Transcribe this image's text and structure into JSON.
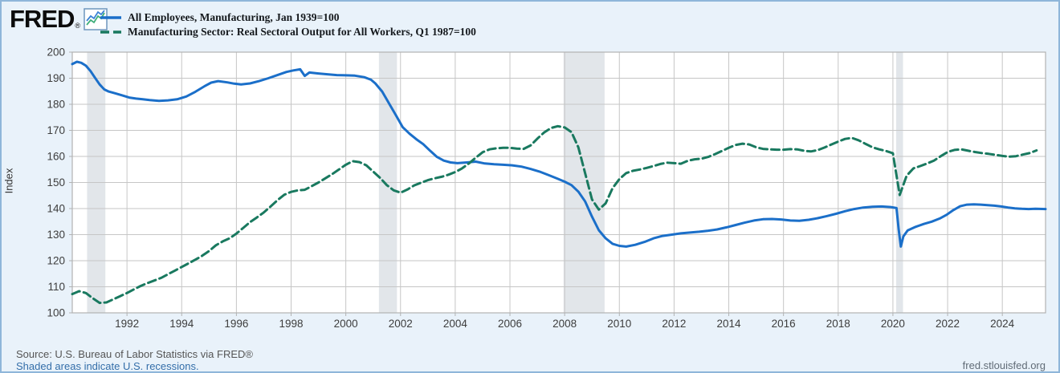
{
  "header": {
    "logo_text": "FRED",
    "logo_registered": "®"
  },
  "footer": {
    "source_text": "Source: U.S. Bureau of Labor Statistics via FRED®",
    "shaded_note": "Shaded areas indicate U.S. recessions.",
    "site_url": "fred.stlouisfed.org"
  },
  "colors": {
    "background": "#e9f2fa",
    "plot_background": "#ffffff",
    "grid": "#c6c6c6",
    "plot_border": "#b2b2b2",
    "recession_shading": "#e2e6ea",
    "axis_text": "#3d3d3d",
    "blue_series": "#1b6fc9",
    "green_series": "#19795f",
    "link_text": "#336ea9"
  },
  "chart_data": {
    "type": "line",
    "ylabel": "Index",
    "xlabel": "",
    "ylim": [
      100,
      200
    ],
    "xlim": [
      1990,
      2025.58
    ],
    "yticks": [
      100,
      110,
      120,
      130,
      140,
      150,
      160,
      170,
      180,
      190,
      200
    ],
    "xticks": [
      1992,
      1994,
      1996,
      1998,
      2000,
      2002,
      2004,
      2006,
      2008,
      2010,
      2012,
      2014,
      2016,
      2018,
      2020,
      2022,
      2024
    ],
    "grid": true,
    "legend_position": "top-left",
    "recessions_note": "shaded vertical bands, U.S. recessions",
    "recessions": [
      [
        1990.54,
        1991.21
      ],
      [
        2001.21,
        2001.87
      ],
      [
        2007.96,
        2009.46
      ],
      [
        2020.12,
        2020.37
      ]
    ],
    "series": [
      {
        "name": "All Employees, Manufacturing, Jan 1939=100",
        "color": "#1b6fc9",
        "style": "solid",
        "points": [
          [
            1990.0,
            195.4
          ],
          [
            1990.17,
            196.3
          ],
          [
            1990.33,
            195.9
          ],
          [
            1990.5,
            194.8
          ],
          [
            1990.67,
            192.7
          ],
          [
            1990.83,
            190.2
          ],
          [
            1991.0,
            187.6
          ],
          [
            1991.17,
            185.7
          ],
          [
            1991.33,
            184.9
          ],
          [
            1991.58,
            184.2
          ],
          [
            1991.83,
            183.4
          ],
          [
            1992.08,
            182.6
          ],
          [
            1992.33,
            182.2
          ],
          [
            1992.58,
            181.9
          ],
          [
            1992.83,
            181.6
          ],
          [
            1993.17,
            181.3
          ],
          [
            1993.5,
            181.5
          ],
          [
            1993.83,
            181.9
          ],
          [
            1994.17,
            183.0
          ],
          [
            1994.5,
            184.8
          ],
          [
            1994.83,
            186.9
          ],
          [
            1995.08,
            188.3
          ],
          [
            1995.33,
            188.9
          ],
          [
            1995.67,
            188.4
          ],
          [
            1995.92,
            187.9
          ],
          [
            1996.17,
            187.6
          ],
          [
            1996.5,
            188.0
          ],
          [
            1996.83,
            188.9
          ],
          [
            1997.17,
            190.0
          ],
          [
            1997.5,
            191.2
          ],
          [
            1997.83,
            192.4
          ],
          [
            1998.08,
            193.0
          ],
          [
            1998.33,
            193.4
          ],
          [
            1998.5,
            190.9
          ],
          [
            1998.67,
            192.2
          ],
          [
            1999.0,
            191.8
          ],
          [
            1999.33,
            191.5
          ],
          [
            1999.67,
            191.2
          ],
          [
            2000.0,
            191.1
          ],
          [
            2000.33,
            191.0
          ],
          [
            2000.67,
            190.4
          ],
          [
            2000.92,
            189.4
          ],
          [
            2001.08,
            188.0
          ],
          [
            2001.33,
            184.9
          ],
          [
            2001.58,
            180.3
          ],
          [
            2001.83,
            175.8
          ],
          [
            2002.08,
            171.2
          ],
          [
            2002.33,
            168.7
          ],
          [
            2002.58,
            166.6
          ],
          [
            2002.83,
            164.7
          ],
          [
            2003.08,
            162.2
          ],
          [
            2003.33,
            159.8
          ],
          [
            2003.58,
            158.4
          ],
          [
            2003.83,
            157.7
          ],
          [
            2004.08,
            157.4
          ],
          [
            2004.42,
            157.7
          ],
          [
            2004.75,
            158.0
          ],
          [
            2005.08,
            157.3
          ],
          [
            2005.42,
            157.0
          ],
          [
            2005.75,
            156.8
          ],
          [
            2006.08,
            156.6
          ],
          [
            2006.42,
            156.1
          ],
          [
            2006.75,
            155.2
          ],
          [
            2007.08,
            154.2
          ],
          [
            2007.42,
            152.8
          ],
          [
            2007.75,
            151.4
          ],
          [
            2008.0,
            150.3
          ],
          [
            2008.25,
            149.0
          ],
          [
            2008.5,
            146.5
          ],
          [
            2008.75,
            142.7
          ],
          [
            2009.0,
            136.9
          ],
          [
            2009.25,
            131.7
          ],
          [
            2009.5,
            128.6
          ],
          [
            2009.75,
            126.5
          ],
          [
            2010.0,
            125.7
          ],
          [
            2010.25,
            125.4
          ],
          [
            2010.58,
            126.1
          ],
          [
            2010.92,
            127.2
          ],
          [
            2011.25,
            128.6
          ],
          [
            2011.58,
            129.5
          ],
          [
            2011.92,
            130.0
          ],
          [
            2012.25,
            130.5
          ],
          [
            2012.58,
            130.8
          ],
          [
            2012.92,
            131.1
          ],
          [
            2013.25,
            131.5
          ],
          [
            2013.58,
            132.0
          ],
          [
            2013.92,
            132.8
          ],
          [
            2014.25,
            133.7
          ],
          [
            2014.58,
            134.6
          ],
          [
            2014.92,
            135.4
          ],
          [
            2015.25,
            135.9
          ],
          [
            2015.58,
            136.0
          ],
          [
            2015.92,
            135.8
          ],
          [
            2016.25,
            135.4
          ],
          [
            2016.58,
            135.3
          ],
          [
            2016.92,
            135.7
          ],
          [
            2017.25,
            136.3
          ],
          [
            2017.58,
            137.1
          ],
          [
            2017.92,
            138.0
          ],
          [
            2018.25,
            139.0
          ],
          [
            2018.58,
            139.8
          ],
          [
            2018.92,
            140.4
          ],
          [
            2019.25,
            140.7
          ],
          [
            2019.58,
            140.8
          ],
          [
            2019.92,
            140.6
          ],
          [
            2020.13,
            140.2
          ],
          [
            2020.21,
            132.0
          ],
          [
            2020.29,
            125.4
          ],
          [
            2020.38,
            129.3
          ],
          [
            2020.54,
            131.6
          ],
          [
            2020.83,
            133.0
          ],
          [
            2021.13,
            134.1
          ],
          [
            2021.42,
            135.0
          ],
          [
            2021.71,
            136.2
          ],
          [
            2021.96,
            137.6
          ],
          [
            2022.21,
            139.4
          ],
          [
            2022.46,
            140.9
          ],
          [
            2022.71,
            141.5
          ],
          [
            2022.96,
            141.6
          ],
          [
            2023.21,
            141.5
          ],
          [
            2023.46,
            141.3
          ],
          [
            2023.71,
            141.1
          ],
          [
            2023.96,
            140.8
          ],
          [
            2024.21,
            140.4
          ],
          [
            2024.46,
            140.1
          ],
          [
            2024.71,
            139.9
          ],
          [
            2024.96,
            139.8
          ],
          [
            2025.21,
            139.9
          ],
          [
            2025.58,
            139.8
          ]
        ]
      },
      {
        "name": "Manufacturing Sector: Real Sectoral Output for All Workers, Q1 1987=100",
        "color": "#19795f",
        "style": "dashed",
        "points": [
          [
            1990.0,
            107.2
          ],
          [
            1990.25,
            108.3
          ],
          [
            1990.5,
            107.6
          ],
          [
            1990.75,
            105.6
          ],
          [
            1991.0,
            103.8
          ],
          [
            1991.25,
            104.0
          ],
          [
            1991.5,
            105.2
          ],
          [
            1991.75,
            106.4
          ],
          [
            1992.0,
            107.6
          ],
          [
            1992.25,
            109.0
          ],
          [
            1992.5,
            110.3
          ],
          [
            1992.75,
            111.4
          ],
          [
            1993.0,
            112.4
          ],
          [
            1993.25,
            113.4
          ],
          [
            1993.5,
            114.8
          ],
          [
            1993.75,
            116.2
          ],
          [
            1994.0,
            117.6
          ],
          [
            1994.25,
            119.0
          ],
          [
            1994.5,
            120.4
          ],
          [
            1994.75,
            121.9
          ],
          [
            1995.0,
            123.7
          ],
          [
            1995.25,
            125.9
          ],
          [
            1995.5,
            127.4
          ],
          [
            1995.75,
            128.6
          ],
          [
            1996.0,
            130.4
          ],
          [
            1996.25,
            132.6
          ],
          [
            1996.5,
            134.8
          ],
          [
            1996.75,
            136.6
          ],
          [
            1997.0,
            138.5
          ],
          [
            1997.25,
            140.8
          ],
          [
            1997.5,
            143.2
          ],
          [
            1997.75,
            145.3
          ],
          [
            1998.0,
            146.4
          ],
          [
            1998.25,
            147.0
          ],
          [
            1998.5,
            147.2
          ],
          [
            1998.75,
            148.6
          ],
          [
            1999.0,
            150.0
          ],
          [
            1999.25,
            151.6
          ],
          [
            1999.5,
            153.2
          ],
          [
            1999.75,
            155.0
          ],
          [
            2000.0,
            156.8
          ],
          [
            2000.25,
            158.2
          ],
          [
            2000.5,
            157.8
          ],
          [
            2000.75,
            156.6
          ],
          [
            2001.0,
            154.2
          ],
          [
            2001.25,
            151.8
          ],
          [
            2001.5,
            149.0
          ],
          [
            2001.75,
            147.0
          ],
          [
            2002.0,
            146.1
          ],
          [
            2002.25,
            147.3
          ],
          [
            2002.5,
            148.9
          ],
          [
            2002.75,
            149.9
          ],
          [
            2003.0,
            150.9
          ],
          [
            2003.25,
            151.6
          ],
          [
            2003.5,
            152.2
          ],
          [
            2003.75,
            153.0
          ],
          [
            2004.0,
            154.0
          ],
          [
            2004.25,
            155.4
          ],
          [
            2004.5,
            157.3
          ],
          [
            2004.75,
            159.5
          ],
          [
            2005.0,
            161.6
          ],
          [
            2005.25,
            162.7
          ],
          [
            2005.5,
            163.1
          ],
          [
            2005.75,
            163.3
          ],
          [
            2006.0,
            163.3
          ],
          [
            2006.25,
            163.0
          ],
          [
            2006.5,
            162.9
          ],
          [
            2006.75,
            164.2
          ],
          [
            2007.0,
            166.8
          ],
          [
            2007.25,
            169.2
          ],
          [
            2007.5,
            170.9
          ],
          [
            2007.75,
            171.6
          ],
          [
            2008.0,
            171.1
          ],
          [
            2008.25,
            169.3
          ],
          [
            2008.5,
            163.5
          ],
          [
            2008.75,
            153.5
          ],
          [
            2009.0,
            143.5
          ],
          [
            2009.25,
            139.6
          ],
          [
            2009.5,
            142.0
          ],
          [
            2009.75,
            147.8
          ],
          [
            2010.0,
            151.3
          ],
          [
            2010.25,
            153.6
          ],
          [
            2010.5,
            154.5
          ],
          [
            2010.75,
            155.0
          ],
          [
            2011.0,
            155.6
          ],
          [
            2011.25,
            156.3
          ],
          [
            2011.5,
            157.1
          ],
          [
            2011.75,
            157.6
          ],
          [
            2012.0,
            157.4
          ],
          [
            2012.25,
            157.2
          ],
          [
            2012.5,
            158.3
          ],
          [
            2012.75,
            158.9
          ],
          [
            2013.0,
            159.1
          ],
          [
            2013.25,
            159.8
          ],
          [
            2013.5,
            160.9
          ],
          [
            2013.75,
            162.1
          ],
          [
            2014.0,
            163.3
          ],
          [
            2014.25,
            164.4
          ],
          [
            2014.5,
            164.9
          ],
          [
            2014.75,
            164.6
          ],
          [
            2015.0,
            163.5
          ],
          [
            2015.25,
            162.9
          ],
          [
            2015.5,
            162.7
          ],
          [
            2015.75,
            162.6
          ],
          [
            2016.0,
            162.6
          ],
          [
            2016.25,
            162.8
          ],
          [
            2016.5,
            162.7
          ],
          [
            2016.75,
            162.2
          ],
          [
            2017.0,
            161.9
          ],
          [
            2017.25,
            162.4
          ],
          [
            2017.5,
            163.4
          ],
          [
            2017.75,
            164.6
          ],
          [
            2018.0,
            165.7
          ],
          [
            2018.25,
            166.7
          ],
          [
            2018.5,
            167.1
          ],
          [
            2018.75,
            166.2
          ],
          [
            2019.0,
            164.8
          ],
          [
            2019.25,
            163.5
          ],
          [
            2019.5,
            162.7
          ],
          [
            2019.75,
            162.1
          ],
          [
            2020.0,
            161.2
          ],
          [
            2020.25,
            145.2
          ],
          [
            2020.5,
            152.6
          ],
          [
            2020.75,
            155.4
          ],
          [
            2021.0,
            156.3
          ],
          [
            2021.25,
            157.3
          ],
          [
            2021.5,
            158.4
          ],
          [
            2021.75,
            160.1
          ],
          [
            2022.0,
            161.7
          ],
          [
            2022.25,
            162.5
          ],
          [
            2022.5,
            162.7
          ],
          [
            2022.75,
            162.2
          ],
          [
            2023.0,
            161.7
          ],
          [
            2023.25,
            161.3
          ],
          [
            2023.5,
            161.0
          ],
          [
            2023.75,
            160.6
          ],
          [
            2024.0,
            160.2
          ],
          [
            2024.25,
            159.9
          ],
          [
            2024.5,
            160.1
          ],
          [
            2024.75,
            160.7
          ],
          [
            2025.0,
            161.3
          ],
          [
            2025.25,
            162.3
          ]
        ]
      }
    ]
  }
}
